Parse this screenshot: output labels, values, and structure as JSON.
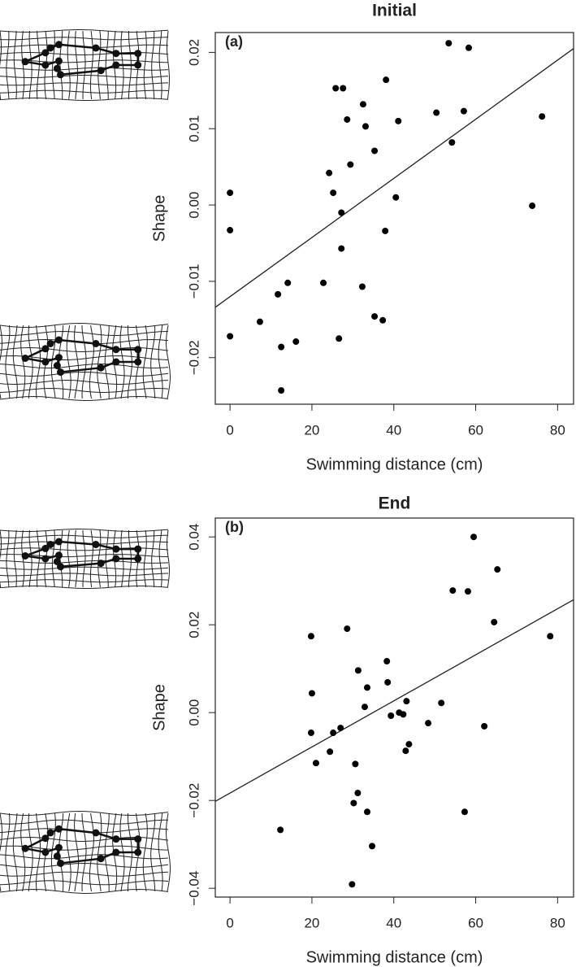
{
  "chart_data": [
    {
      "type": "scatter",
      "title": "Initial",
      "panel_label": "(a)",
      "x_label": "Swimming distance (cm)",
      "y_label": "Shape",
      "color": "#000000",
      "x": [
        53.4,
        58.3,
        76.2,
        38.1,
        25.8,
        27.6,
        32.5,
        28.6,
        33.1,
        41.1,
        50.4,
        57.1,
        54.2,
        35.3,
        29.4,
        24.2,
        25.2,
        40.5,
        0,
        27.2,
        73.8,
        0,
        37.9,
        27.2,
        14.1,
        22.8,
        32.3,
        11.7,
        7.3,
        35.3,
        37.3,
        0,
        16.1,
        26.6,
        12.5,
        12.5
      ],
      "values": [
        0.0212,
        0.0206,
        0.0116,
        0.0164,
        0.0153,
        0.0153,
        0.0132,
        0.0112,
        0.0103,
        0.011,
        0.0121,
        0.0123,
        0.0082,
        0.0071,
        0.0053,
        0.0042,
        0.0016,
        0.001,
        0.0016,
        -0.001,
        -0.0001,
        -0.0033,
        -0.0034,
        -0.0057,
        -0.0102,
        -0.0102,
        -0.0107,
        -0.0117,
        -0.0153,
        -0.0146,
        -0.0151,
        -0.0172,
        -0.0179,
        -0.0175,
        -0.0186,
        -0.0243
      ],
      "regression": {
        "x": [
          -3.6,
          83.9
        ],
        "y": [
          -0.0134,
          0.0205
        ]
      },
      "xlim": [
        -3.6,
        83.9
      ],
      "ylim": [
        -0.0261,
        0.0226
      ],
      "xticks": [
        0,
        20,
        40,
        60,
        80
      ],
      "yticks": [
        0.02,
        0.01,
        {
          "value": 0,
          "label": "0.00"
        },
        {
          "value": -0.01,
          "label": "−0.01"
        },
        {
          "value": -0.02,
          "label": "−0.02"
        }
      ]
    },
    {
      "type": "scatter",
      "title": "End",
      "panel_label": "(b)",
      "x_label": "Swimming distance (cm)",
      "y_label": "Shape",
      "color": "#000000",
      "x": [
        59.5,
        65.3,
        54.4,
        58.1,
        64.5,
        78.2,
        19.8,
        28.6,
        38.3,
        31.3,
        20.0,
        33.5,
        38.5,
        43.1,
        32.9,
        51.6,
        41.3,
        42.3,
        39.3,
        48.4,
        62.1,
        27.0,
        25.2,
        19.8,
        43.7,
        42.9,
        24.4,
        21.0,
        30.6,
        31.2,
        30.2,
        33.5,
        57.3,
        12.3,
        34.7,
        29.8
      ],
      "values": [
        0.04,
        0.0326,
        0.0278,
        0.0276,
        0.0206,
        0.0174,
        0.0174,
        0.0191,
        0.0117,
        0.0096,
        0.0044,
        0.0057,
        0.0069,
        0.0026,
        0.0013,
        0.0022,
        0.0,
        -0.0004,
        -0.0007,
        -0.0024,
        -0.0031,
        -0.0035,
        -0.0046,
        -0.0046,
        -0.0072,
        -0.0087,
        -0.0089,
        -0.0115,
        -0.0117,
        -0.0183,
        -0.0206,
        -0.0226,
        -0.0226,
        -0.0267,
        -0.0304,
        -0.0391
      ],
      "regression": {
        "x": [
          -3.6,
          83.9
        ],
        "y": [
          -0.0202,
          0.0257
        ]
      },
      "xlim": [
        -3.6,
        83.9
      ],
      "ylim": [
        -0.042,
        0.0443
      ],
      "xticks": [
        0,
        20,
        40,
        60,
        80
      ],
      "yticks": [
        0.04,
        0.02,
        {
          "value": 0,
          "label": "0.00"
        },
        {
          "value": -0.02,
          "label": "−0.02"
        },
        {
          "value": -0.04,
          "label": "−0.04"
        }
      ]
    }
  ]
}
